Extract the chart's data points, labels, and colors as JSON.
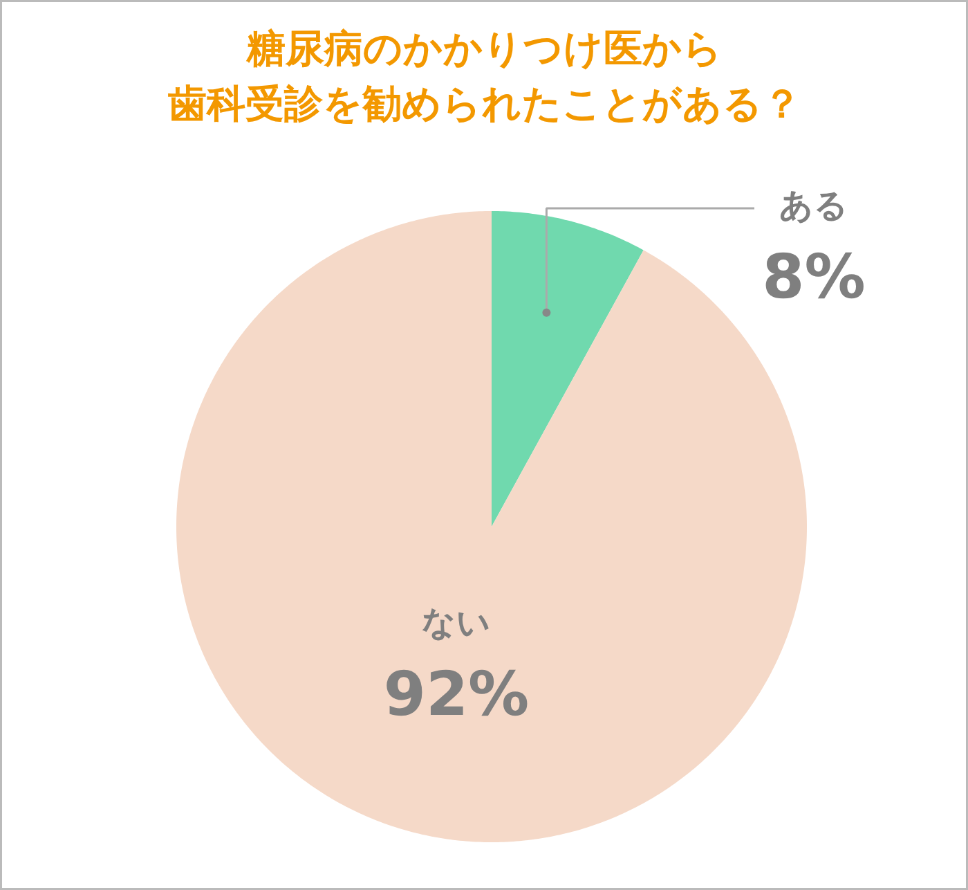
{
  "chart_data": {
    "type": "pie",
    "title": "糖尿病のかかりつけ医から",
    "subtitle": "歯科受診を勧められたことがある？",
    "categories": [
      "ある",
      "ない"
    ],
    "values": [
      8,
      92
    ],
    "colors": [
      "#70d9ae",
      "#f5d9c8"
    ],
    "value_labels": [
      "8%",
      "92%"
    ]
  }
}
